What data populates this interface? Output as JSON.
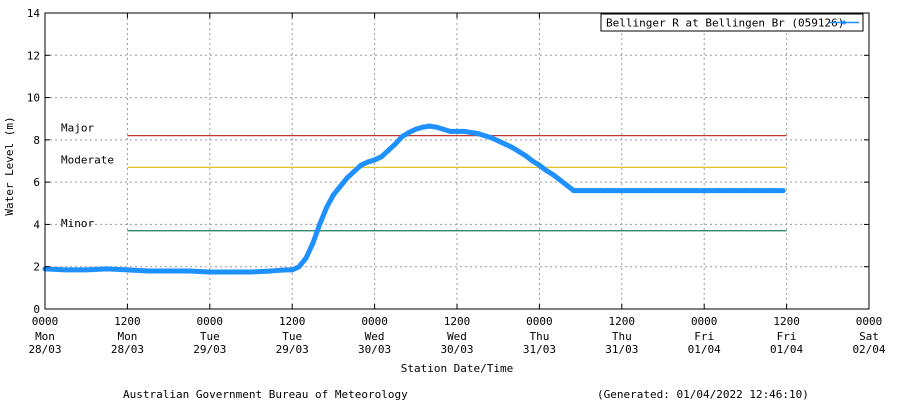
{
  "footer": {
    "left": "Australian Government Bureau of Meteorology",
    "right": "(Generated: 01/04/2022 12:46:10)"
  },
  "chart_data": {
    "type": "line",
    "title": "",
    "xlabel": "Station Date/Time",
    "ylabel": "Water Level (m)",
    "ylim": [
      0,
      14
    ],
    "y_ticks": [
      0,
      2,
      4,
      6,
      8,
      10,
      12,
      14
    ],
    "xlim_hours": [
      0,
      120
    ],
    "grid": true,
    "legend_position": "top-right",
    "x_ticks": [
      {
        "t": 0,
        "time": "0000",
        "day": "Mon",
        "date": "28/03"
      },
      {
        "t": 12,
        "time": "1200",
        "day": "Mon",
        "date": "28/03"
      },
      {
        "t": 24,
        "time": "0000",
        "day": "Tue",
        "date": "29/03"
      },
      {
        "t": 36,
        "time": "1200",
        "day": "Tue",
        "date": "29/03"
      },
      {
        "t": 48,
        "time": "0000",
        "day": "Wed",
        "date": "30/03"
      },
      {
        "t": 60,
        "time": "1200",
        "day": "Wed",
        "date": "30/03"
      },
      {
        "t": 72,
        "time": "0000",
        "day": "Thu",
        "date": "31/03"
      },
      {
        "t": 84,
        "time": "1200",
        "day": "Thu",
        "date": "31/03"
      },
      {
        "t": 96,
        "time": "0000",
        "day": "Fri",
        "date": "01/04"
      },
      {
        "t": 108,
        "time": "1200",
        "day": "Fri",
        "date": "01/04"
      },
      {
        "t": 120,
        "time": "0000",
        "day": "Sat",
        "date": "02/04"
      }
    ],
    "flood_levels": [
      {
        "label": "Major",
        "value": 8.2,
        "color": "#c0392b",
        "x_start": 12,
        "x_end": 108
      },
      {
        "label": "Moderate",
        "value": 6.7,
        "color": "#e6c229",
        "x_start": 12,
        "x_end": 108
      },
      {
        "label": "Minor",
        "value": 3.7,
        "color": "#1a7a5e",
        "x_start": 12,
        "x_end": 108
      }
    ],
    "series": [
      {
        "name": "Bellinger R at Bellingen Br (059126)",
        "color": "#1e90ff",
        "x": [
          0,
          3,
          6,
          9,
          12,
          15,
          18,
          21,
          24,
          27,
          30,
          33,
          35,
          36,
          37,
          38,
          39,
          40,
          41,
          42,
          43,
          44,
          45,
          46,
          47,
          48,
          49,
          50,
          51,
          52,
          53,
          54,
          55,
          56,
          57,
          58,
          59,
          60,
          61,
          62,
          63,
          64,
          65,
          66,
          67,
          68,
          69,
          70,
          71,
          72,
          73,
          74,
          75,
          76,
          77,
          78,
          79,
          80,
          81,
          82,
          83,
          84,
          85,
          86,
          87,
          88,
          89,
          90,
          91,
          92,
          93,
          94,
          95,
          96,
          98,
          100,
          102,
          104,
          106,
          107.5
        ],
        "values": [
          1.9,
          1.85,
          1.85,
          1.9,
          1.85,
          1.8,
          1.8,
          1.8,
          1.75,
          1.75,
          1.75,
          1.8,
          1.85,
          1.85,
          2.0,
          2.4,
          3.1,
          4.0,
          4.8,
          5.4,
          5.8,
          6.2,
          6.5,
          6.8,
          6.95,
          7.05,
          7.2,
          7.5,
          7.8,
          8.15,
          8.35,
          8.5,
          8.6,
          8.65,
          8.6,
          8.5,
          8.4,
          8.4,
          8.4,
          8.35,
          8.3,
          8.2,
          8.1,
          7.95,
          7.8,
          7.65,
          7.45,
          7.25,
          7.0,
          6.8,
          6.55,
          6.35,
          6.1,
          5.85,
          5.6,
          5.6,
          5.6,
          5.6,
          5.6,
          5.6,
          5.6,
          5.6,
          5.6,
          5.6,
          5.6,
          5.6,
          5.6,
          5.6,
          5.6,
          5.6,
          5.6,
          5.6,
          5.6,
          5.6,
          5.6,
          5.6,
          5.6,
          5.6,
          5.6,
          5.6
        ]
      }
    ]
  }
}
